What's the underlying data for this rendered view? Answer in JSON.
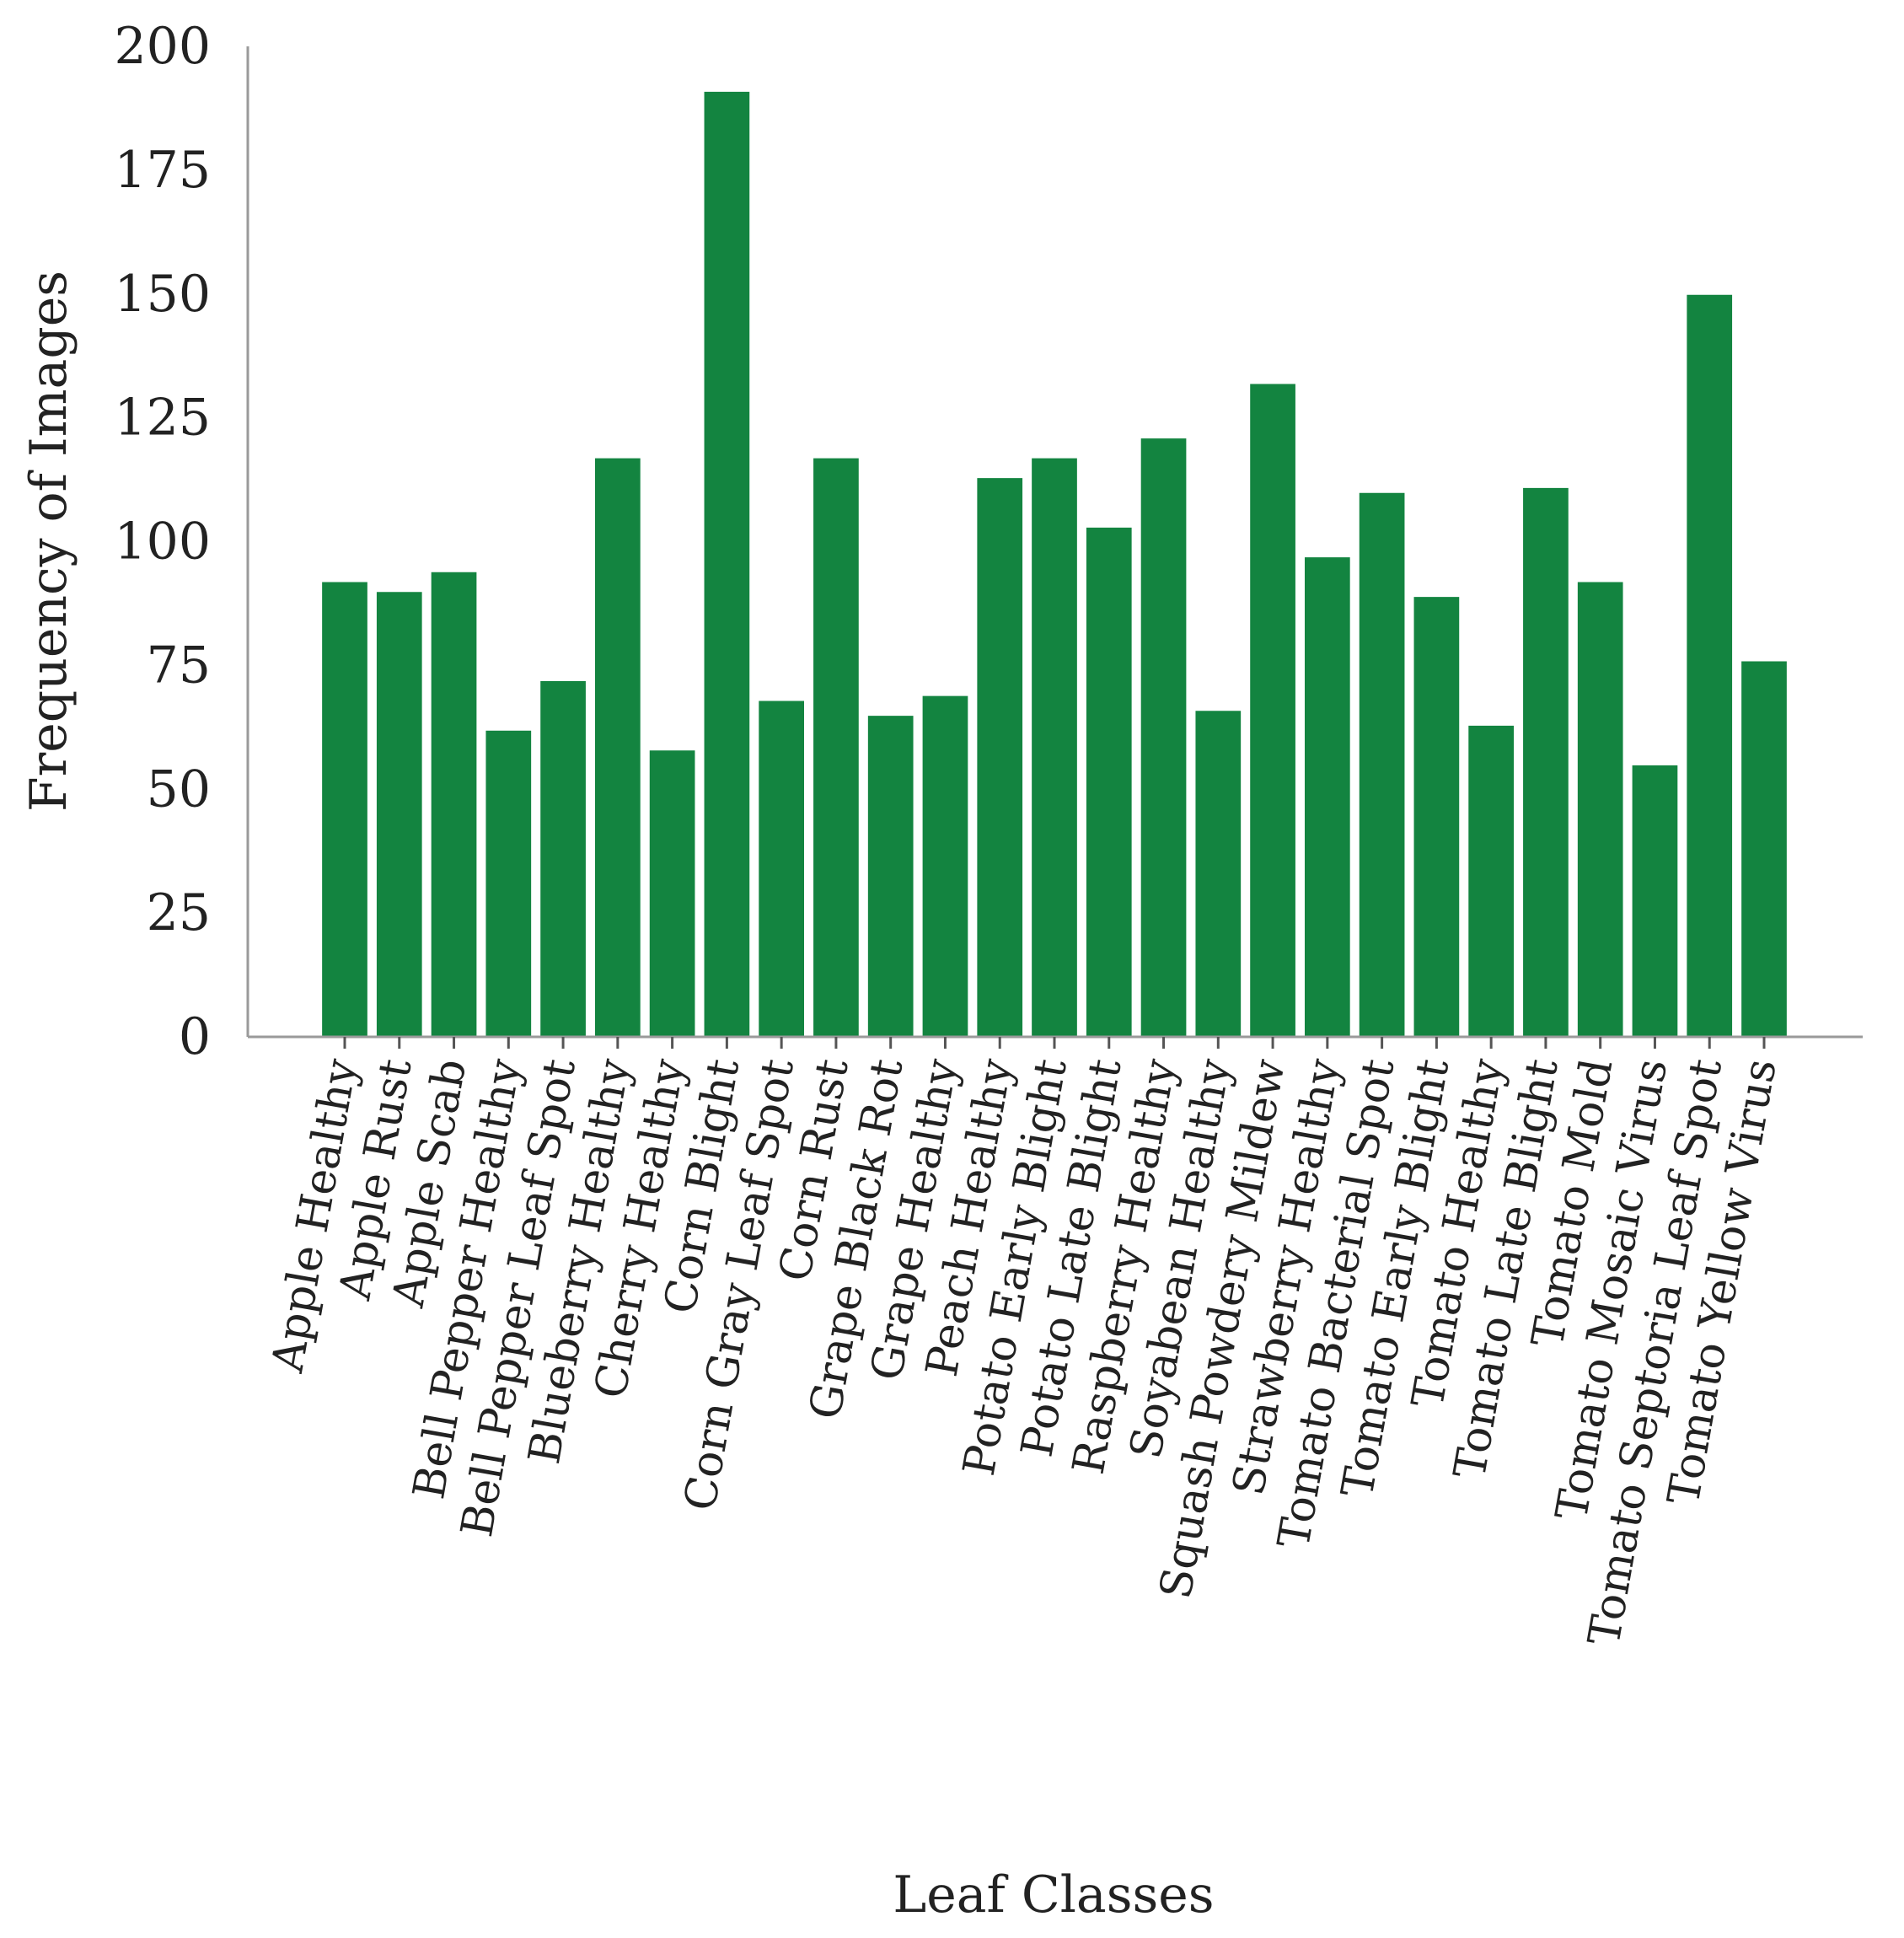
{
  "chart_data": {
    "type": "bar",
    "xlabel": "Leaf Classes",
    "ylabel": "Frequency of Images",
    "ylim": [
      0,
      200
    ],
    "yticks": [
      0,
      25,
      50,
      75,
      100,
      125,
      150,
      175,
      200
    ],
    "grid": false,
    "bar_color": "#138440",
    "categories": [
      "Apple Healthy",
      "Apple Rust",
      "Apple Scab",
      "Bell Pepper Healthy",
      "Bell Pepper Leaf Spot",
      "Blueberry Healthy",
      "Cherry Healthy",
      "Corn Blight",
      "Corn Gray Leaf Spot",
      "Corn Rust",
      "Grape Black Rot",
      "Grape Healthy",
      "Peach Healthy",
      "Potato Early Blight",
      "Potato Late Blight",
      "Raspberry Healthy",
      "Soyabean Healthy",
      "Squash Powdery Mildew",
      "Strawberry Healthy",
      "Tomato Bacterial Spot",
      "Tomato Early Blight",
      "Tomato Healthy",
      "Tomato Late Blight",
      "Tomato Mold",
      "Tomato Mosaic Virus",
      "Tomato Septoria Leaf Spot",
      "Tomato Yellow Virus"
    ],
    "values": [
      92,
      90,
      94,
      62,
      72,
      117,
      58,
      191,
      68,
      117,
      65,
      69,
      113,
      117,
      103,
      121,
      66,
      132,
      97,
      110,
      89,
      63,
      111,
      92,
      55,
      150,
      76
    ]
  }
}
